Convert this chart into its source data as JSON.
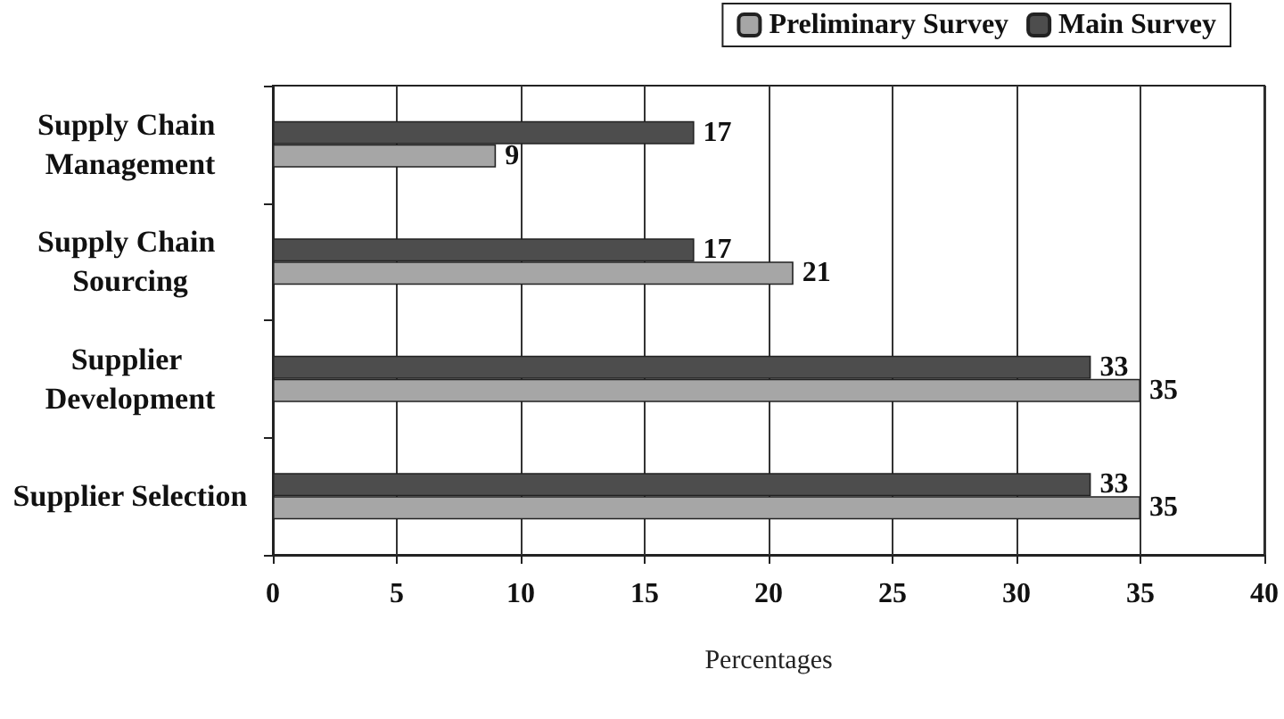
{
  "chart_data": {
    "type": "bar",
    "orientation": "horizontal",
    "xlabel": "Percentages",
    "categories": [
      "Supply Chain Management",
      "Supply Chain Sourcing",
      "Supplier Development",
      "Supplier Selection"
    ],
    "series": [
      {
        "name": "Main Survey",
        "color": "#4d4d4d",
        "values": [
          17,
          17,
          33,
          33
        ]
      },
      {
        "name": "Preliminary Survey",
        "color": "#a6a6a6",
        "values": [
          9,
          21,
          35,
          35
        ]
      }
    ],
    "xlim": [
      0,
      40
    ],
    "xticks": [
      0,
      5,
      10,
      15,
      20,
      25,
      30,
      35,
      40
    ],
    "grid": "x",
    "legend": "top right",
    "data_labels": true
  }
}
